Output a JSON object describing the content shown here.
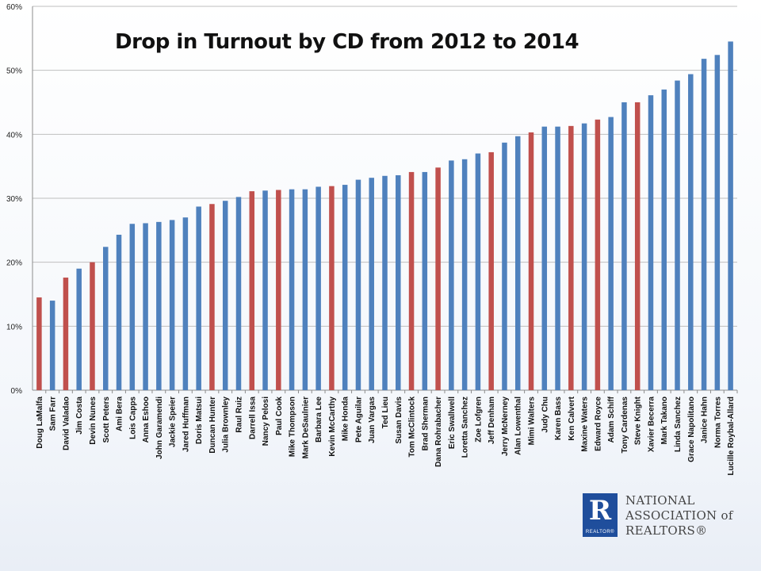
{
  "chart_data": {
    "type": "bar",
    "title": "Drop in Turnout by CD from 2012 to 2014",
    "xlabel": "",
    "ylabel": "",
    "ylim": [
      0,
      60
    ],
    "ytick_labels": [
      "0%",
      "10%",
      "20%",
      "30%",
      "40%",
      "50%",
      "60%"
    ],
    "grid": true,
    "colors": {
      "blue": "#4f81bd",
      "red": "#c0504d",
      "grid": "#bfbfbf",
      "axis": "#8c8c8c"
    },
    "categories": [
      "Doug LaMalfa",
      "Sam Farr",
      "David Valadao",
      "Jim Costa",
      "Devin Nunes",
      "Scott Peters",
      "Ami Bera",
      "Lois Capps",
      "Anna Eshoo",
      "John Garamendi",
      "Jackie Speier",
      "Jared Huffman",
      "Doris Matsui",
      "Duncan Hunter",
      "Julia Brownley",
      "Raul Ruiz",
      "Darrell Issa",
      "Nancy Pelosi",
      "Paul Cook",
      "Mike Thompson",
      "Mark DeSaulnier",
      "Barbara Lee",
      "Kevin McCarthy",
      "Mike Honda",
      "Pete Aguilar",
      "Juan Vargas",
      "Ted Lieu",
      "Susan Davis",
      "Tom McClintock",
      "Brad Sherman",
      "Dana Rohrabacher",
      "Eric Swallwell",
      "Loretta Sanchez",
      "Zoe Lofgren",
      "Jeff Denham",
      "Jerry McNerney",
      "Alan Lowenthal",
      "Mimi Walters",
      "Judy Chu",
      "Karen Bass",
      "Ken Calvert",
      "Maxine Waters",
      "Edward Royce",
      "Adam Schiff",
      "Tony Cardenas",
      "Steve Knight",
      "Xavier Becerra",
      "Mark Takano",
      "Linda Sanchez",
      "Grace Napolitano",
      "Janice Hahn",
      "Norma Torres",
      "Lucille Roybal-Allard"
    ],
    "values": [
      14.5,
      14.0,
      17.6,
      19.0,
      20.0,
      22.4,
      24.3,
      26.0,
      26.1,
      26.3,
      26.6,
      27.0,
      28.7,
      29.1,
      29.6,
      30.2,
      31.1,
      31.2,
      31.3,
      31.4,
      31.4,
      31.8,
      31.9,
      32.1,
      32.9,
      33.2,
      33.5,
      33.6,
      34.1,
      34.1,
      34.8,
      35.9,
      36.1,
      37.0,
      37.2,
      38.7,
      39.7,
      40.3,
      41.2,
      41.2,
      41.3,
      41.7,
      42.3,
      42.7,
      45.0,
      45.0,
      46.1,
      47.0,
      48.4,
      49.4,
      51.8,
      52.4,
      54.5
    ],
    "party": [
      "R",
      "D",
      "R",
      "D",
      "R",
      "D",
      "D",
      "D",
      "D",
      "D",
      "D",
      "D",
      "D",
      "R",
      "D",
      "D",
      "R",
      "D",
      "R",
      "D",
      "D",
      "D",
      "R",
      "D",
      "D",
      "D",
      "D",
      "D",
      "R",
      "D",
      "R",
      "D",
      "D",
      "D",
      "R",
      "D",
      "D",
      "R",
      "D",
      "D",
      "R",
      "D",
      "R",
      "D",
      "D",
      "R",
      "D",
      "D",
      "D",
      "D",
      "D",
      "D",
      "D"
    ]
  },
  "logo": {
    "mark": "R",
    "mark_sub": "REALTOR®",
    "line1": "NATIONAL",
    "line2": "ASSOCIATION of",
    "line3": "REALTORS®"
  }
}
